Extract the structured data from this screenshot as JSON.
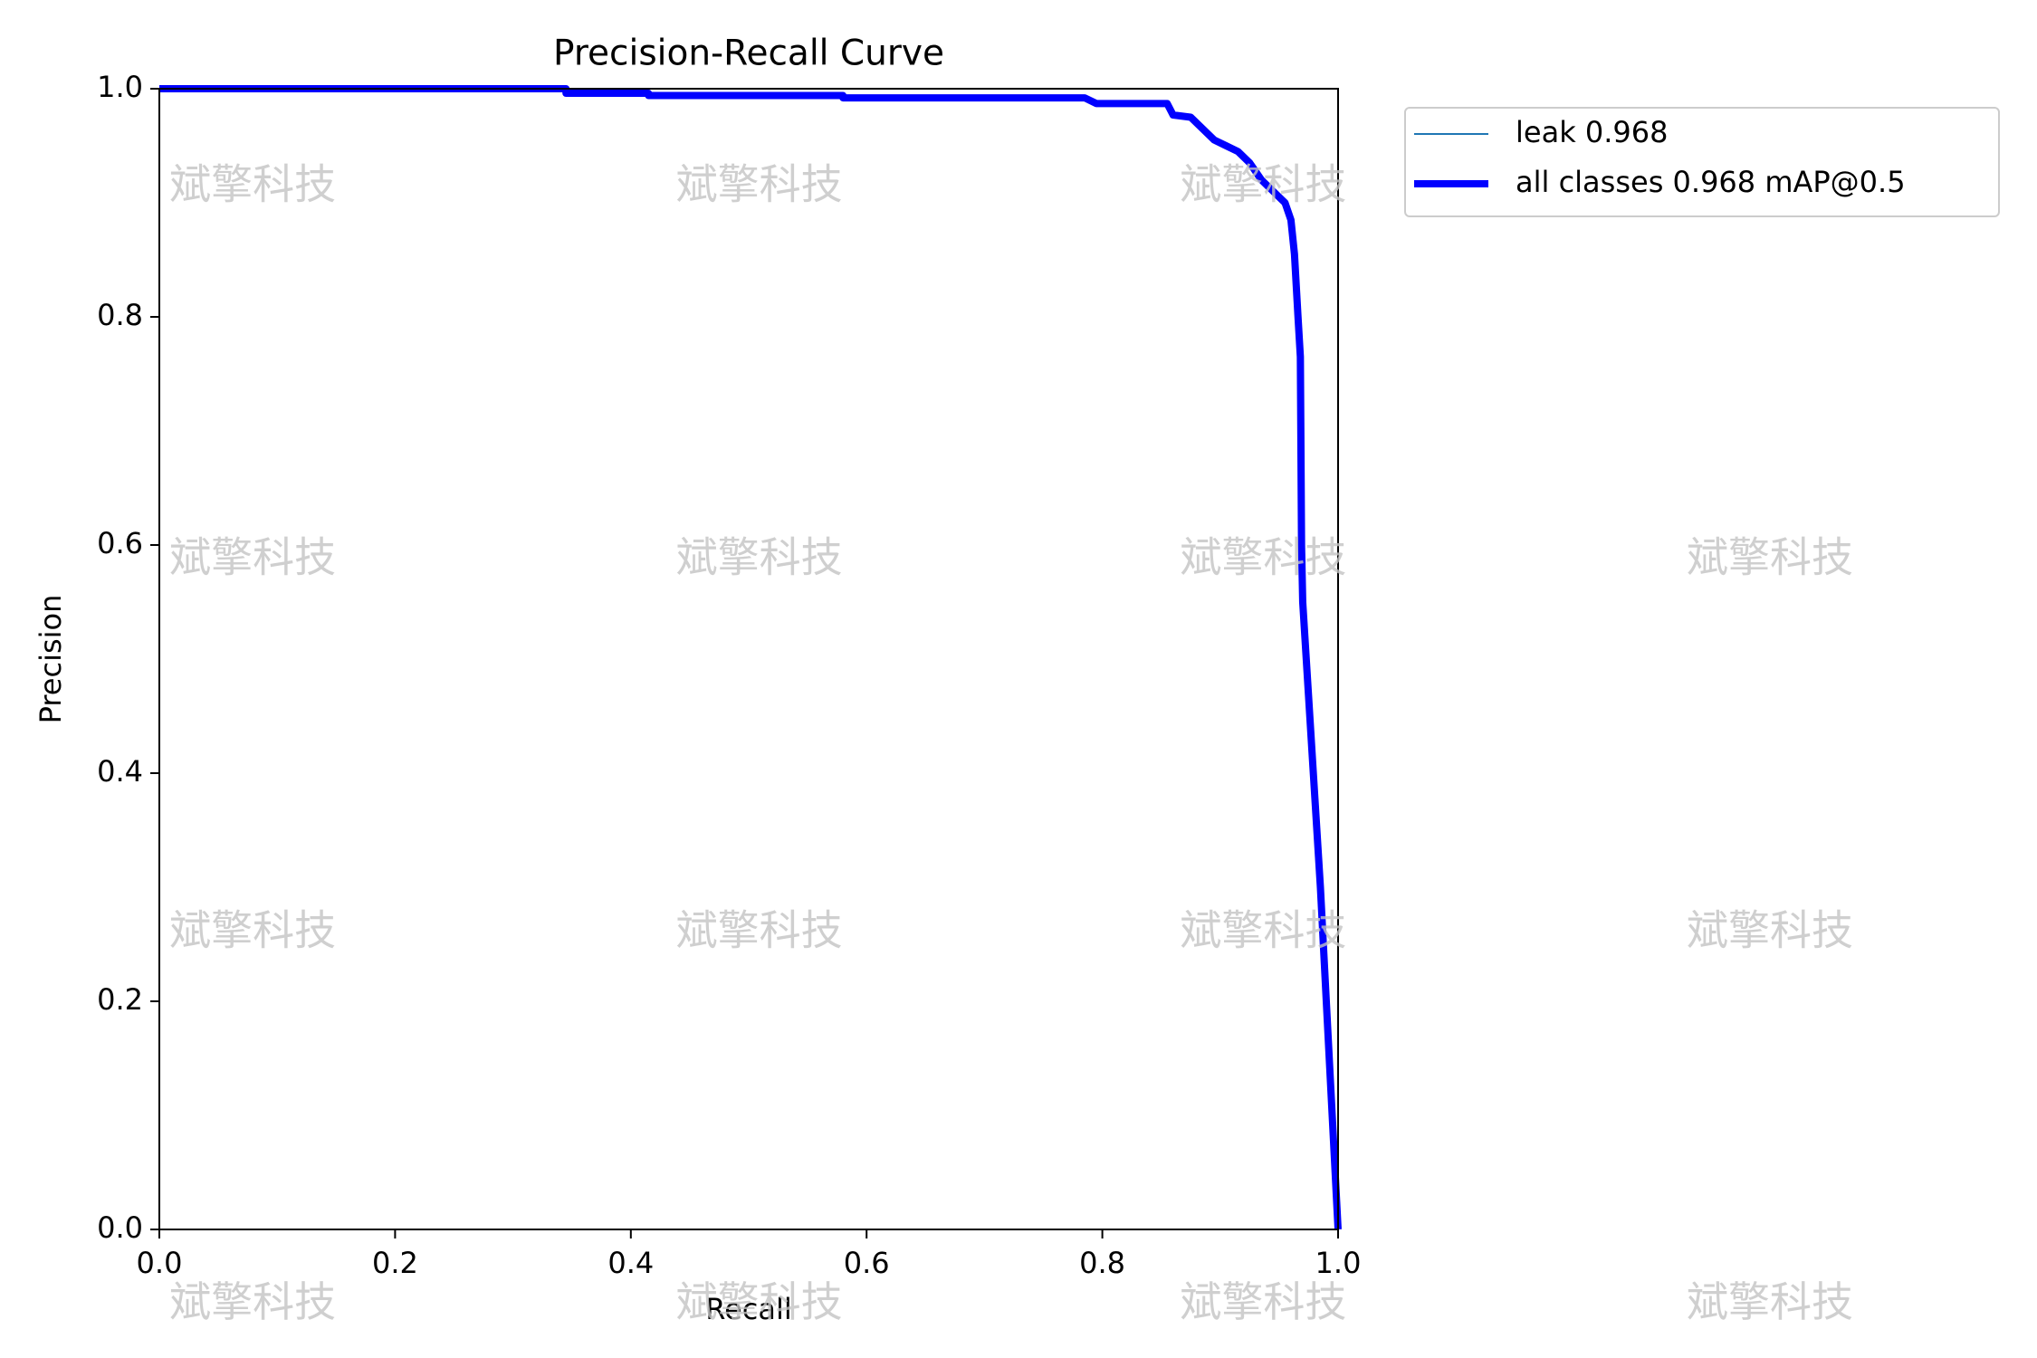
{
  "chart_data": {
    "type": "line",
    "title": "Precision-Recall Curve",
    "x_label": "Recall",
    "y_label": "Precision",
    "watermark": "斌擎科技",
    "x": [
      0,
      0.345,
      0.345,
      0.415,
      0.415,
      0.58,
      0.58,
      0.785,
      0.795,
      0.855,
      0.86,
      0.875,
      0.885,
      0.895,
      0.905,
      0.915,
      0.925,
      0.935,
      0.945,
      0.955,
      0.96,
      0.963,
      0.966,
      0.968,
      0.969,
      0.97,
      0.985,
      0.995,
      1.0
    ],
    "series": [
      {
        "name": "leak 0.968",
        "color": "#1f77b4",
        "width": 2,
        "values": [
          1.0,
          1.0,
          0.996,
          0.996,
          0.994,
          0.994,
          0.992,
          0.992,
          0.987,
          0.987,
          0.977,
          0.975,
          0.965,
          0.955,
          0.95,
          0.945,
          0.935,
          0.92,
          0.91,
          0.9,
          0.885,
          0.855,
          0.8,
          0.765,
          0.6,
          0.55,
          0.3,
          0.1,
          0.0
        ]
      },
      {
        "name": "all classes 0.968 mAP@0.5",
        "color": "#0000ff",
        "width": 8,
        "values": [
          1.0,
          1.0,
          0.996,
          0.996,
          0.994,
          0.994,
          0.992,
          0.992,
          0.987,
          0.987,
          0.977,
          0.975,
          0.965,
          0.955,
          0.95,
          0.945,
          0.935,
          0.92,
          0.91,
          0.9,
          0.885,
          0.855,
          0.8,
          0.765,
          0.6,
          0.55,
          0.3,
          0.1,
          0.0
        ]
      }
    ],
    "xlim": [
      0,
      1
    ],
    "ylim": [
      0,
      1
    ],
    "xticks": [
      {
        "value": 0,
        "label": "0.0"
      },
      0.2,
      0.4,
      0.6,
      0.8,
      {
        "value": 1,
        "label": "1.0"
      }
    ],
    "yticks": [
      {
        "value": 0,
        "label": "0.0"
      },
      0.2,
      0.4,
      0.6,
      0.8,
      {
        "value": 1,
        "label": "1.0"
      }
    ],
    "grid": false,
    "legend": "outside-upper-right"
  }
}
